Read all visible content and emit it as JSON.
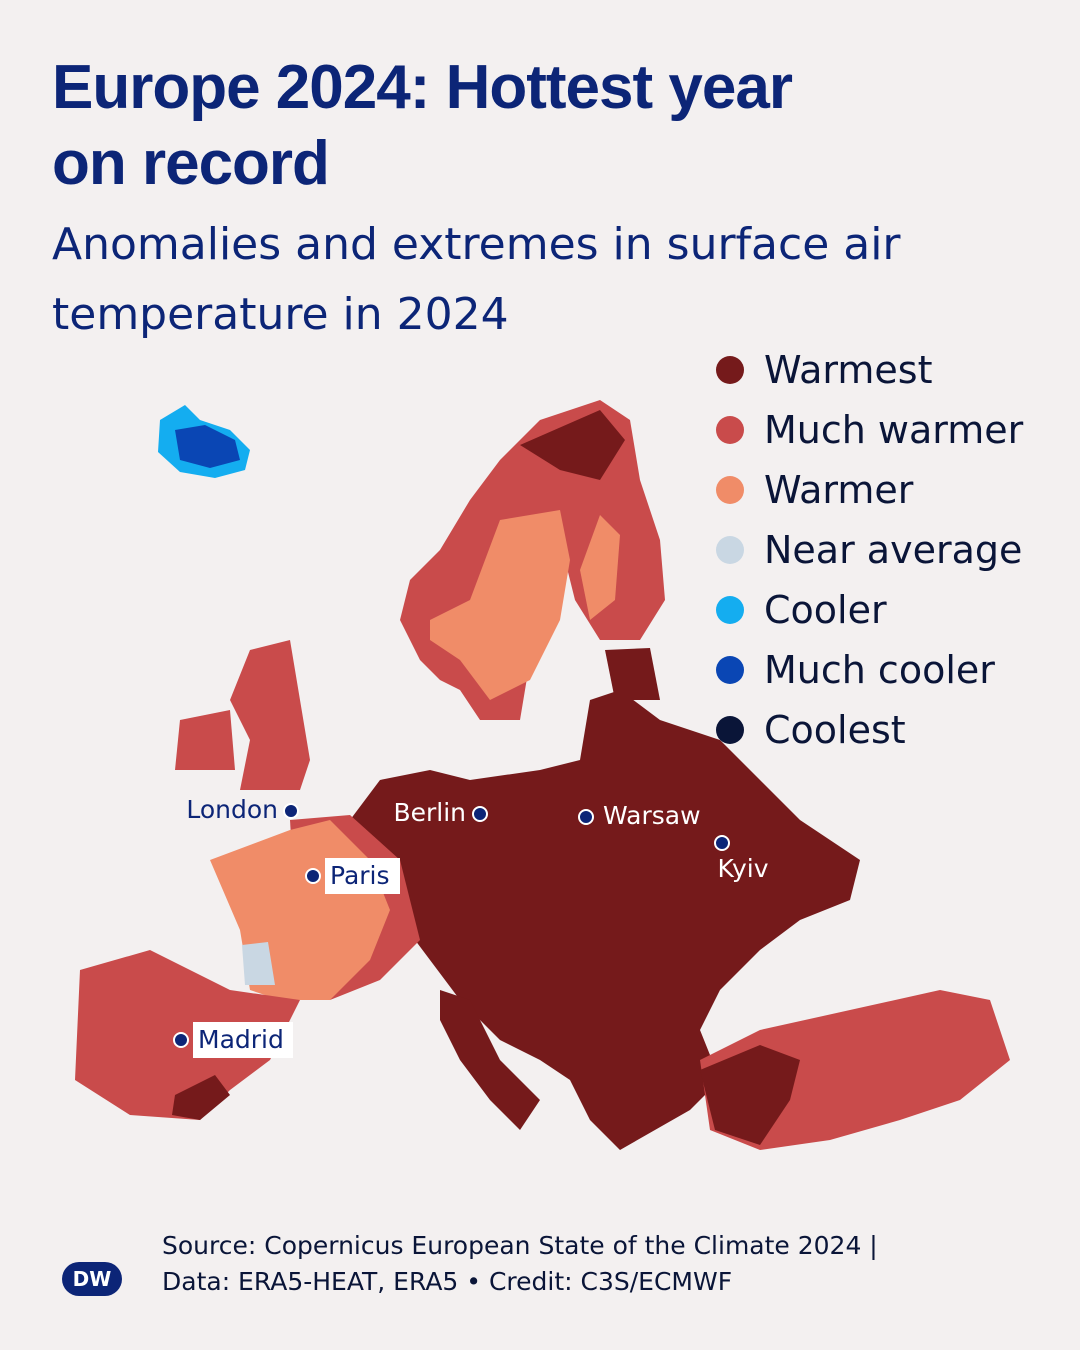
{
  "title": "Europe 2024: Hottest year on record",
  "subtitle": "Anomalies and extremes in surface air temperature in 2024",
  "legend": [
    {
      "label": "Warmest",
      "color": "#751a1b"
    },
    {
      "label": "Much warmer",
      "color": "#c94b4b"
    },
    {
      "label": "Warmer",
      "color": "#f08c68"
    },
    {
      "label": "Near average",
      "color": "#c9d7e3"
    },
    {
      "label": "Cooler",
      "color": "#14adf0"
    },
    {
      "label": "Much cooler",
      "color": "#0a46b4"
    },
    {
      "label": "Coolest",
      "color": "#0a1538"
    }
  ],
  "cities": [
    "London",
    "Berlin",
    "Warsaw",
    "Kyiv",
    "Paris",
    "Madrid"
  ],
  "source": [
    "Source: Copernicus European State of the Climate 2024 |",
    "Data: ERA5-HEAT, ERA5 • Credit: C3S/ECMWF"
  ],
  "logo": "DW"
}
